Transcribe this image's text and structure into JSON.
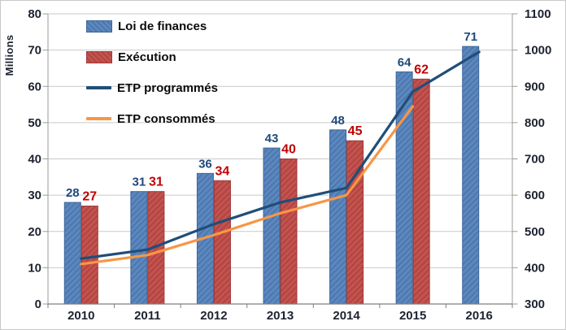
{
  "chart_data": {
    "type": "combo (clustered bar + line, dual axis)",
    "categories": [
      "2010",
      "2011",
      "2012",
      "2013",
      "2014",
      "2015",
      "2016"
    ],
    "left_axis": {
      "title": "Millions",
      "min": 0,
      "max": 80,
      "step": 10
    },
    "right_axis": {
      "min": 300,
      "max": 1100,
      "step": 100
    },
    "legend_position": "top-left inside plot",
    "grid": "horizontal gridlines on",
    "series": [
      {
        "name": "Loi de finances",
        "type": "bar",
        "axis": "left",
        "values": [
          28,
          31,
          36,
          43,
          48,
          64,
          71
        ],
        "label_color": "#1F497D",
        "pattern": {
          "base": "#5C88BF",
          "stripe": "#4A76AC",
          "border": "#3D6599"
        }
      },
      {
        "name": "Exécution",
        "type": "bar",
        "axis": "left",
        "values": [
          27,
          31,
          34,
          40,
          45,
          62,
          null
        ],
        "label_color": "#C00000",
        "pattern": {
          "base": "#C4534F",
          "stripe": "#AE4340",
          "border": "#9E3936"
        }
      },
      {
        "name": "ETP programmés",
        "type": "line",
        "axis": "right",
        "color": "#1F4E79",
        "values": [
          425,
          450,
          520,
          580,
          620,
          885,
          995
        ]
      },
      {
        "name": "ETP consommés",
        "type": "line",
        "axis": "right",
        "color": "#F79646",
        "values": [
          410,
          435,
          490,
          550,
          600,
          845,
          null
        ]
      }
    ],
    "colors": {
      "axis_text": "#1d2330",
      "gridline": "#c9c9c9",
      "axis_line": "#9b9b9b",
      "bottom_axis_line": "#7f7f7f"
    }
  }
}
